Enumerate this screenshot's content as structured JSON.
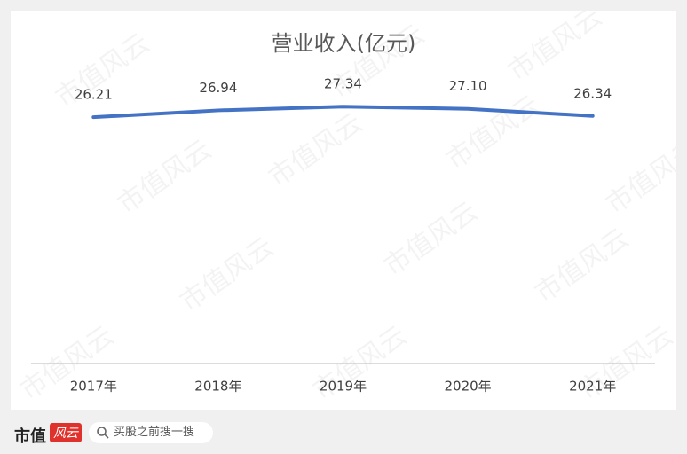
{
  "chart_data": {
    "type": "line",
    "title": "营业收入(亿元)",
    "categories": [
      "2017年",
      "2018年",
      "2019年",
      "2020年",
      "2021年"
    ],
    "values": [
      26.21,
      26.94,
      27.34,
      27.1,
      26.34
    ],
    "value_labels": [
      "26.21",
      "26.94",
      "27.34",
      "27.10",
      "26.34"
    ],
    "color": "#4472c4",
    "ylim": [
      0,
      30
    ],
    "watermark": "市值风云"
  },
  "footer": {
    "logo": "市值",
    "badge": "风云",
    "search_placeholder": "买股之前搜一搜"
  }
}
